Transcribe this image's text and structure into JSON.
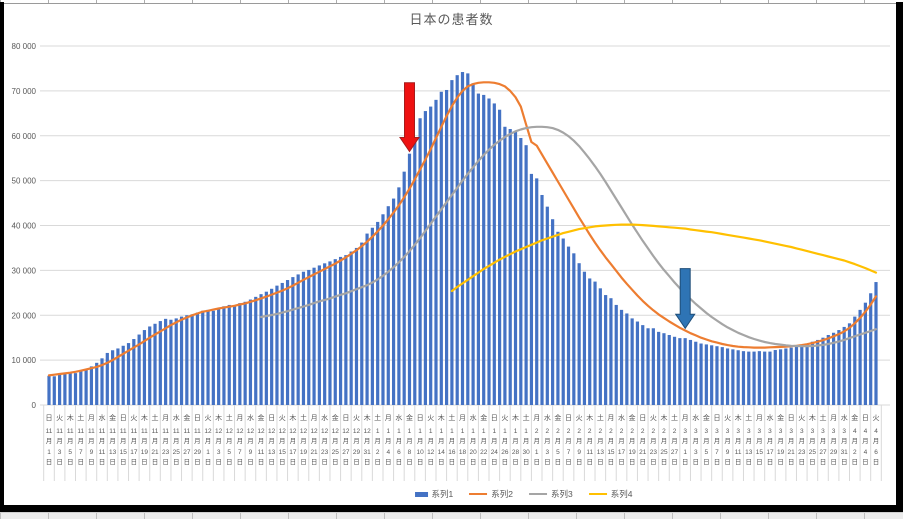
{
  "chart": {
    "title": "日本の患者数",
    "y_axis": {
      "min": 0,
      "max": 80000,
      "step": 10000,
      "tick_labels": [
        "0",
        "10 000",
        "20 000",
        "30 000",
        "40 000",
        "50 000",
        "60 000",
        "70 000",
        "80 000"
      ]
    },
    "legend": [
      {
        "label": "系列1",
        "color": "#4472C4",
        "type": "bar"
      },
      {
        "label": "系列2",
        "color": "#ED7D31",
        "type": "line"
      },
      {
        "label": "系列3",
        "color": "#A5A5A5",
        "type": "line"
      },
      {
        "label": "系列4",
        "color": "#FFC000",
        "type": "line"
      }
    ]
  },
  "chart_data": {
    "type": "combo",
    "title": "日本の患者数",
    "ylim": [
      0,
      80000
    ],
    "grid": true,
    "legend_position": "bottom",
    "x_label_interval_points": 2,
    "x_labels": [
      "日,11,1",
      "火,11,3",
      "木,11,5",
      "土,11,7",
      "月,11,9",
      "水,11,11",
      "金,11,13",
      "日,11,15",
      "火,11,17",
      "木,11,19",
      "土,11,21",
      "月,11,23",
      "水,11,25",
      "金,11,27",
      "日,11,29",
      "火,12,1",
      "木,12,3",
      "土,12,5",
      "月,12,7",
      "水,12,9",
      "金,12,11",
      "日,12,13",
      "火,12,15",
      "木,12,17",
      "土,12,19",
      "月,12,21",
      "水,12,23",
      "金,12,25",
      "日,12,27",
      "火,12,29",
      "木,12,31",
      "土,1,2",
      "月,1,4",
      "水,1,6",
      "金,1,8",
      "日,1,10",
      "火,1,12",
      "木,1,14",
      "土,1,16",
      "月,1,18",
      "水,1,20",
      "金,1,22",
      "日,1,24",
      "火,1,26",
      "木,1,28",
      "土,1,30",
      "月,2,1",
      "水,2,3",
      "金,2,5",
      "日,2,7",
      "火,2,9",
      "木,2,11",
      "土,2,13",
      "月,2,15",
      "水,2,17",
      "金,2,19",
      "日,2,21",
      "火,2,23",
      "木,2,25",
      "土,2,27",
      "月,3,1",
      "水,3,3",
      "金,3,5",
      "日,3,7",
      "火,3,9",
      "木,3,11",
      "土,3,13",
      "月,3,15",
      "水,3,17",
      "金,3,19",
      "日,3,21",
      "火,3,23",
      "木,3,25",
      "土,3,27",
      "月,3,29",
      "水,3,31",
      "金,4,2",
      "日,4,4",
      "火,4,6"
    ],
    "series": [
      {
        "name": "系列1",
        "type": "bar",
        "color": "#4472C4",
        "values": [
          6500,
          6400,
          6800,
          7000,
          7200,
          7100,
          7600,
          7900,
          8600,
          9400,
          10400,
          11600,
          12200,
          12600,
          13200,
          13800,
          14700,
          15700,
          16700,
          17500,
          18100,
          18700,
          19200,
          19000,
          19300,
          19700,
          20000,
          20200,
          20600,
          21000,
          21200,
          21000,
          21600,
          22000,
          22300,
          22100,
          22700,
          23000,
          23500,
          24100,
          24700,
          25250,
          25900,
          26600,
          27200,
          27850,
          28500,
          29100,
          29700,
          30100,
          30600,
          31100,
          31570,
          32000,
          32500,
          33000,
          33400,
          34200,
          35000,
          36200,
          38200,
          39500,
          40800,
          42500,
          44300,
          46000,
          48500,
          52000,
          56000,
          59500,
          63900,
          65500,
          66500,
          68000,
          69800,
          70200,
          72400,
          73500,
          74200,
          73900,
          71700,
          69400,
          69100,
          68300,
          67200,
          65800,
          62000,
          61500,
          60900,
          59500,
          57900,
          51500,
          50500,
          46800,
          44200,
          41400,
          38600,
          37100,
          35300,
          33800,
          31600,
          29700,
          28200,
          27500,
          26000,
          24500,
          23800,
          22300,
          21200,
          20400,
          19300,
          18600,
          17800,
          17100,
          17100,
          16300,
          16000,
          15600,
          15200,
          14900,
          14900,
          14500,
          14100,
          13700,
          13500,
          13300,
          13100,
          12900,
          12600,
          12400,
          12200,
          12000,
          11900,
          11900,
          12000,
          11900,
          11900,
          12250,
          12400,
          12600,
          12800,
          13000,
          13300,
          13700,
          14100,
          14500,
          15000,
          15600,
          16100,
          16700,
          17400,
          18200,
          19700,
          21200,
          22800,
          24900,
          27400
        ]
      },
      {
        "name": "系列2",
        "type": "line",
        "color": "#ED7D31",
        "values": [
          6600,
          6750,
          6900,
          7050,
          7200,
          7400,
          7650,
          7900,
          8200,
          8500,
          8900,
          9400,
          10000,
          10700,
          11400,
          12100,
          12800,
          13500,
          14250,
          15000,
          15700,
          16400,
          17100,
          17800,
          18400,
          19000,
          19500,
          20000,
          20400,
          20800,
          21000,
          21250,
          21500,
          21700,
          21900,
          22100,
          22400,
          22650,
          23000,
          23350,
          23750,
          24150,
          24600,
          25050,
          25500,
          26000,
          26600,
          27250,
          27900,
          28500,
          29100,
          29700,
          30300,
          30900,
          31500,
          32200,
          32900,
          33700,
          34500,
          35400,
          36400,
          37500,
          38700,
          40000,
          41400,
          42900,
          44500,
          46300,
          48200,
          50300,
          52500,
          54700,
          57000,
          59500,
          62000,
          64400,
          66600,
          68500,
          70000,
          71000,
          71500,
          71800,
          71900,
          71900,
          71800,
          71500,
          71000,
          70000,
          68600,
          66500,
          62500,
          58600,
          57800,
          55800,
          53800,
          51800,
          49800,
          47800,
          45800,
          43800,
          41800,
          39900,
          38000,
          36200,
          34500,
          32900,
          31400,
          29900,
          28400,
          27000,
          25700,
          24400,
          23200,
          22100,
          21100,
          20200,
          19400,
          18600,
          17900,
          17200,
          16600,
          16000,
          15500,
          15000,
          14600,
          14200,
          13900,
          13600,
          13350,
          13150,
          13000,
          12900,
          12850,
          12800,
          12800,
          12800,
          12850,
          12900,
          12950,
          13000,
          13100,
          13200,
          13350,
          13550,
          13800,
          14100,
          14450,
          14850,
          15300,
          15800,
          16400,
          17200,
          18200,
          19400,
          20800,
          22400,
          24200
        ]
      },
      {
        "name": "系列3",
        "type": "line",
        "color": "#A5A5A5",
        "values": [
          null,
          null,
          null,
          null,
          null,
          null,
          null,
          null,
          null,
          null,
          null,
          null,
          null,
          null,
          null,
          null,
          null,
          null,
          null,
          null,
          null,
          null,
          null,
          null,
          null,
          null,
          null,
          null,
          null,
          null,
          null,
          null,
          null,
          null,
          null,
          null,
          null,
          null,
          null,
          null,
          19600,
          19830,
          20050,
          20300,
          20600,
          20900,
          21250,
          21600,
          21950,
          22300,
          22700,
          23100,
          23400,
          23750,
          24150,
          24550,
          24900,
          25350,
          25800,
          26250,
          26700,
          27300,
          28000,
          28800,
          29700,
          30700,
          31800,
          33000,
          34300,
          35700,
          37200,
          38800,
          40400,
          42000,
          43600,
          45200,
          46800,
          48400,
          50000,
          51500,
          53000,
          54400,
          55700,
          56900,
          58000,
          58900,
          59700,
          60400,
          61000,
          61400,
          61700,
          61900,
          62000,
          62000,
          61900,
          61700,
          61300,
          60700,
          59900,
          58900,
          57700,
          56300,
          54800,
          53200,
          51500,
          49700,
          47800,
          45900,
          44000,
          42100,
          40200,
          38400,
          36600,
          34900,
          33200,
          31600,
          30100,
          28700,
          27300,
          26000,
          24800,
          23600,
          22500,
          21500,
          20500,
          19600,
          18800,
          18000,
          17300,
          16700,
          16100,
          15600,
          15100,
          14700,
          14350,
          14050,
          13800,
          13600,
          13450,
          13300,
          13200,
          13150,
          13100,
          13100,
          13150,
          13250,
          13400,
          13600,
          13850,
          14150,
          14500,
          14900,
          15300,
          15700,
          16100,
          16500,
          16900
        ]
      },
      {
        "name": "系列4",
        "type": "line",
        "color": "#FFC000",
        "values": [
          null,
          null,
          null,
          null,
          null,
          null,
          null,
          null,
          null,
          null,
          null,
          null,
          null,
          null,
          null,
          null,
          null,
          null,
          null,
          null,
          null,
          null,
          null,
          null,
          null,
          null,
          null,
          null,
          null,
          null,
          null,
          null,
          null,
          null,
          null,
          null,
          null,
          null,
          null,
          null,
          null,
          null,
          null,
          null,
          null,
          null,
          null,
          null,
          null,
          null,
          null,
          null,
          null,
          null,
          null,
          null,
          null,
          null,
          null,
          null,
          null,
          null,
          null,
          null,
          null,
          null,
          null,
          null,
          null,
          null,
          null,
          null,
          null,
          null,
          null,
          null,
          25400,
          26300,
          27100,
          27900,
          28700,
          29500,
          30300,
          31000,
          31700,
          32400,
          33000,
          33600,
          34200,
          34700,
          35200,
          35700,
          36200,
          36700,
          37100,
          37500,
          37900,
          38300,
          38600,
          38900,
          39200,
          39400,
          39600,
          39800,
          39900,
          40000,
          40100,
          40150,
          40200,
          40200,
          40200,
          40150,
          40100,
          40000,
          39900,
          39800,
          39700,
          39600,
          39500,
          39400,
          39300,
          39100,
          38950,
          38800,
          38650,
          38500,
          38300,
          38100,
          37900,
          37700,
          37500,
          37300,
          37100,
          36900,
          36700,
          36450,
          36200,
          35950,
          35700,
          35450,
          35200,
          34900,
          34600,
          34300,
          34000,
          33700,
          33400,
          33100,
          32800,
          32500,
          32200,
          31800,
          31400,
          30950,
          30500,
          30000,
          29500
        ]
      }
    ]
  },
  "annotations": [
    {
      "name": "red-down-arrow",
      "color": "#EE1111",
      "stroke": "#A61c1c",
      "day": 68,
      "value_top": 71800,
      "value_tip": 56500
    },
    {
      "name": "blue-down-arrow",
      "color": "#2E74B5",
      "stroke": "#1F4E79",
      "day": 120,
      "value_top": 30400,
      "value_tip": 17100
    }
  ]
}
